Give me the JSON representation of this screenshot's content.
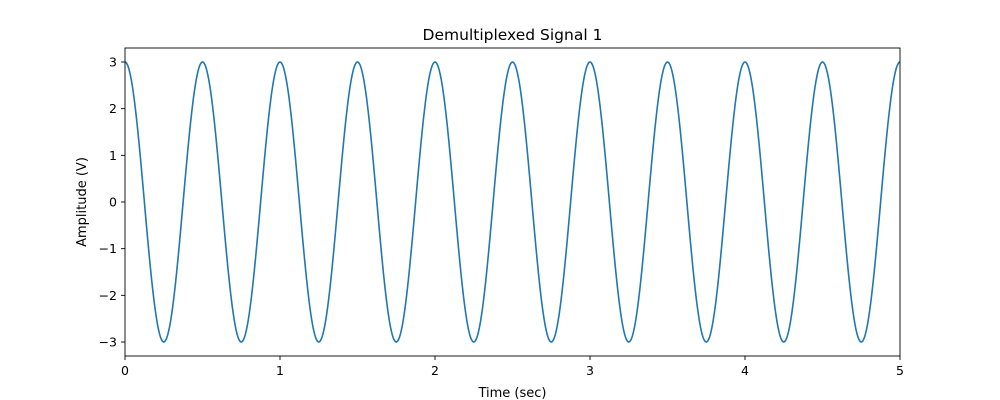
{
  "chart_data": {
    "type": "line",
    "title": "Demultiplexed Signal 1",
    "xlabel": "Time (sec)",
    "ylabel": "Amplitude (V)",
    "xlim": [
      0,
      5
    ],
    "ylim": [
      -3.3,
      3.3
    ],
    "x_ticks": [
      0,
      1,
      2,
      3,
      4,
      5
    ],
    "x_tick_labels": [
      "0",
      "1",
      "2",
      "3",
      "4",
      "5"
    ],
    "y_ticks": [
      -3,
      -2,
      -1,
      0,
      1,
      2,
      3
    ],
    "y_tick_labels": [
      "−3",
      "−2",
      "−1",
      "0",
      "1",
      "2",
      "3"
    ],
    "grid": false,
    "series": [
      {
        "color": "#1f77b4",
        "x": [
          0,
          0.125,
          0.25,
          0.375,
          0.5,
          0.625,
          0.75,
          0.875,
          1.0,
          1.125,
          1.25,
          1.375,
          1.5,
          1.625,
          1.75,
          1.875,
          2.0,
          2.125,
          2.25,
          2.375,
          2.5,
          2.625,
          2.75,
          2.875,
          3.0,
          3.125,
          3.25,
          3.375,
          3.5,
          3.625,
          3.75,
          3.875,
          4.0,
          4.125,
          4.25,
          4.375,
          4.5,
          4.625,
          4.75,
          4.875,
          5.0
        ],
        "y": [
          3,
          0,
          -3,
          0,
          3,
          0,
          -3,
          0,
          3,
          0,
          -3,
          0,
          3,
          0,
          -3,
          0,
          3,
          0,
          -3,
          0,
          3,
          0,
          -3,
          0,
          3,
          0,
          -3,
          0,
          3,
          0,
          -3,
          0,
          3,
          0,
          -3,
          0,
          3,
          0,
          -3,
          0,
          3
        ]
      }
    ]
  }
}
